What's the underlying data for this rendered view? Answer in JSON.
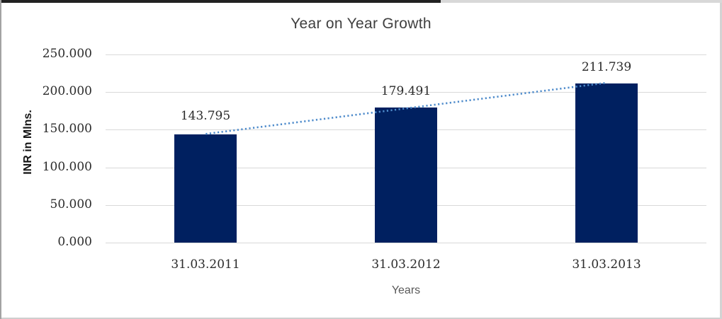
{
  "chart_data": {
    "type": "bar",
    "title": "Year on Year Growth",
    "xlabel": "Years",
    "ylabel": "INR in Mlns.",
    "categories": [
      "31.03.2011",
      "31.03.2012",
      "31.03.2013"
    ],
    "values": [
      143.795,
      179.491,
      211.739
    ],
    "value_labels": [
      "143.795",
      "179.491",
      "211.739"
    ],
    "ylim": [
      0,
      250
    ],
    "ytick_labels": [
      "0.000",
      "50.000",
      "100.000",
      "150.000",
      "200.000",
      "250.000"
    ],
    "grid": true,
    "legend": "none",
    "bar_color": "#002060",
    "gridline_color": "#d9d9d9",
    "trendline": {
      "type": "linear",
      "style": "dotted",
      "color": "#4e8bcb",
      "endpoint_values": [
        144.4,
        212.3
      ]
    }
  }
}
